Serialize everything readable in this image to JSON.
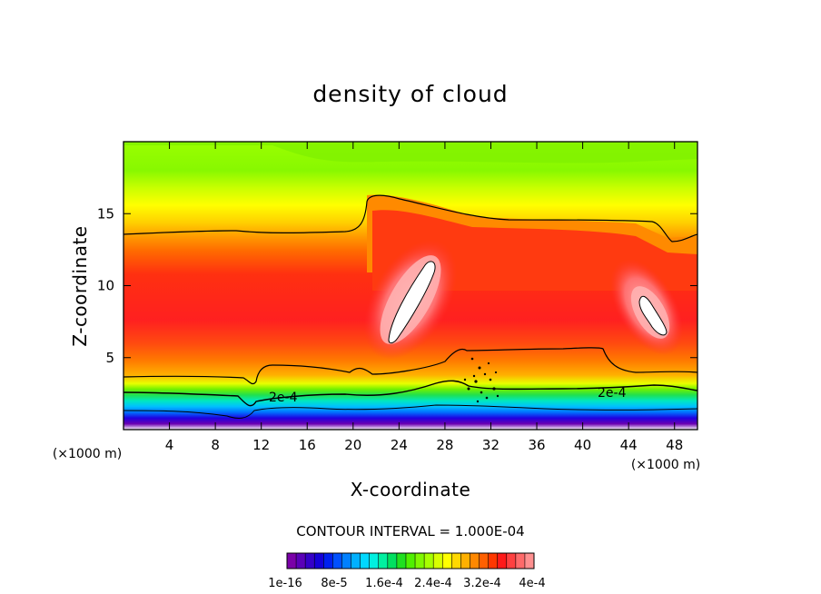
{
  "chart_data": {
    "type": "contour",
    "title": "density of cloud",
    "xlabel": "X-coordinate",
    "ylabel": "Z-coordinate",
    "x_unit": "(×1000 m)",
    "y_unit": "(×1000 m)",
    "xlim": [
      0,
      50
    ],
    "ylim": [
      0,
      20
    ],
    "x_ticks": [
      4,
      8,
      12,
      16,
      20,
      24,
      28,
      32,
      36,
      40,
      44,
      48
    ],
    "y_ticks": [
      5,
      10,
      15
    ],
    "contour_interval_text": "CONTOUR INTERVAL =  1.000E-04",
    "contour_label": "2e-4",
    "contour_levels": [
      0.0002,
      0.0003
    ],
    "colorbar": {
      "labels": [
        "1e-16",
        "8e-5",
        "1.6e-4",
        "2.4e-4",
        "3.2e-4",
        "4e-4"
      ],
      "colors": [
        "#7a00a8",
        "#5a00b8",
        "#3500c8",
        "#1500d8",
        "#0020f0",
        "#0050ff",
        "#0080ff",
        "#00b0ff",
        "#00d8ff",
        "#00f0e0",
        "#00f0a0",
        "#00e060",
        "#20e020",
        "#50f000",
        "#80f800",
        "#a8ff00",
        "#d8ff00",
        "#ffff00",
        "#ffd800",
        "#ffb000",
        "#ff8800",
        "#ff6000",
        "#ff3800",
        "#ff1a1a",
        "#ff4040",
        "#ff6a6a",
        "#ff9090"
      ]
    },
    "features": [
      {
        "name": "cloud-core-left",
        "x": 25.1,
        "z": 9.3,
        "value": ">4e-4"
      },
      {
        "name": "cloud-core-right",
        "x": 45.8,
        "z": 8.2,
        "value": ">4e-4"
      }
    ]
  }
}
